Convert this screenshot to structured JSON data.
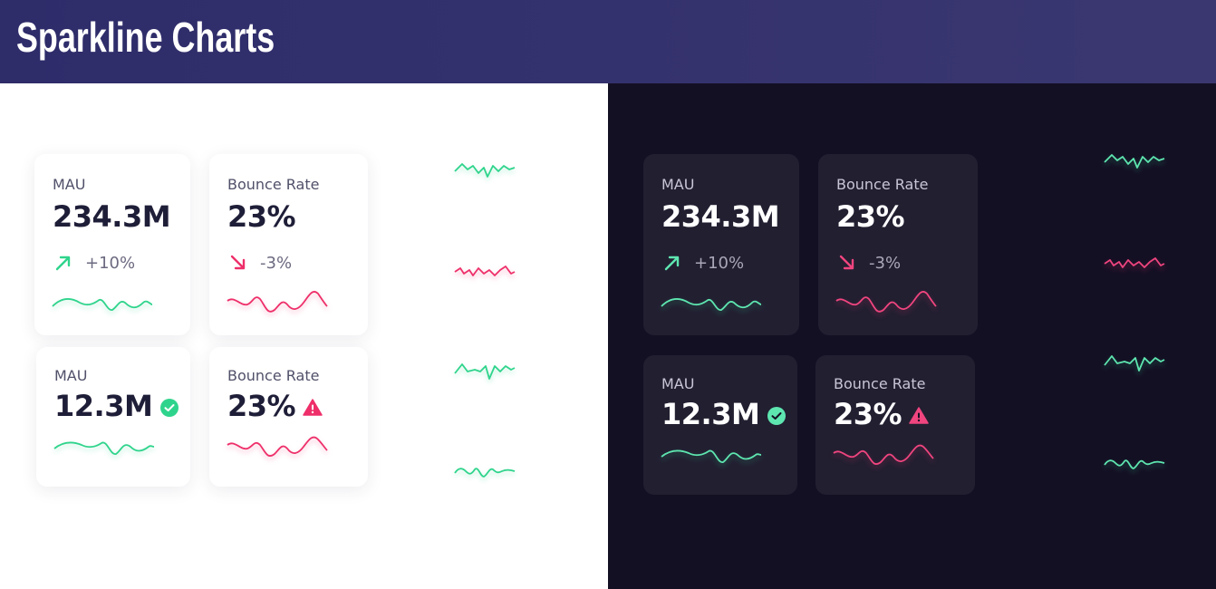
{
  "header": {
    "title": "Sparkline Charts"
  },
  "colors": {
    "green": "#2fd48c",
    "green_dark": "#5ee6b0",
    "pink": "#ee2f6a",
    "pink_dark": "#f0457f"
  },
  "cards": {
    "mau_trend": {
      "label": "MAU",
      "value": "234.3M",
      "change": "+10%",
      "trend_icon": "arrow-up-right-icon"
    },
    "bounce_trend": {
      "label": "Bounce Rate",
      "value": "23%",
      "change": "-3%",
      "trend_icon": "arrow-down-right-icon"
    },
    "mau_status": {
      "label": "MAU",
      "value": "12.3M",
      "status_icon": "check-circle-icon"
    },
    "bounce_status": {
      "label": "Bounce Rate",
      "value": "23%",
      "status_icon": "warning-triangle-icon"
    }
  }
}
